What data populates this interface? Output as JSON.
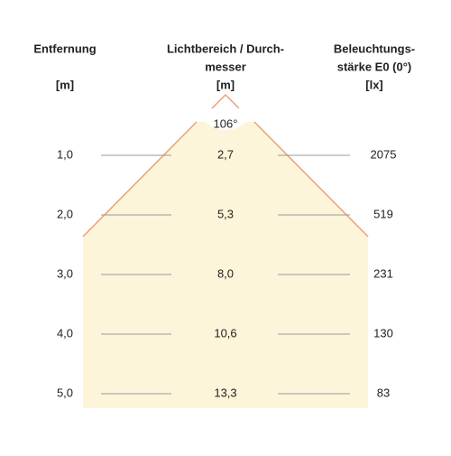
{
  "header": {
    "distance": {
      "title": "Entfernung",
      "unit": "[m]"
    },
    "diameter": {
      "title_line1": "Lichtbereich / Durch-",
      "title_line2": "messer",
      "unit": "[m]"
    },
    "illuminance": {
      "title_line1": "Beleuchtungs-",
      "title_line2": "stärke E0 (0°)",
      "unit": "[lx]"
    }
  },
  "beam_angle": "106°",
  "rows": [
    {
      "distance": "1,0",
      "diameter": "2,7",
      "illuminance": "2075"
    },
    {
      "distance": "2,0",
      "diameter": "5,3",
      "illuminance": "519"
    },
    {
      "distance": "3,0",
      "diameter": "8,0",
      "illuminance": "231"
    },
    {
      "distance": "4,0",
      "diameter": "10,6",
      "illuminance": "130"
    },
    {
      "distance": "5,0",
      "diameter": "13,3",
      "illuminance": "83"
    }
  ]
}
